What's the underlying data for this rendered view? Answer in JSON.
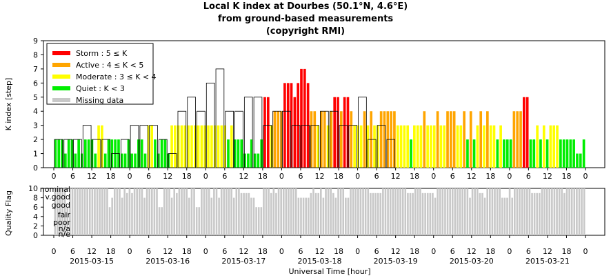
{
  "header": {
    "title_line1": "Local K index at Dourbes (50.1°N, 4.6°E)",
    "title_line2": "from ground-based measurements",
    "title_line3": "(copyright RMI)"
  },
  "colors": {
    "storm": "#ff0000",
    "active": "#ffa500",
    "moderate": "#ffff00",
    "quiet": "#00ee00",
    "missing": "#c8c8c8",
    "outline": "#000000"
  },
  "chart_data": [
    {
      "type": "bar",
      "title": "Local K index at Dourbes (50.1°N, 4.6°E) from ground-based measurements (copyright RMI)",
      "ylabel": "K index [step]",
      "ylim": [
        0,
        9
      ],
      "yticks": [
        "0",
        "1",
        "2",
        "3",
        "4",
        "5",
        "6",
        "7",
        "8",
        "9"
      ],
      "grid": false,
      "legend_position": "top-left",
      "legend": [
        {
          "key": "storm",
          "label": "Storm : 5 ≤ K"
        },
        {
          "key": "active",
          "label": "Active : 4 ≤ K < 5"
        },
        {
          "key": "moderate",
          "label": "Moderate : 3 ≤ K < 4"
        },
        {
          "key": "quiet",
          "label": "Quiet : K < 3"
        },
        {
          "key": "missing",
          "label": "Missing data"
        }
      ],
      "xtick_labels": [
        "0",
        "6",
        "12",
        "18",
        "0",
        "6",
        "12",
        "18",
        "0",
        "6",
        "12",
        "18",
        "0",
        "6",
        "12",
        "18",
        "0",
        "6",
        "12",
        "18",
        "0",
        "6",
        "12",
        "18",
        "0",
        "6",
        "12",
        "18",
        "0"
      ],
      "series": [
        {
          "name": "3-hour K index",
          "values": [
            2,
            2,
            2,
            3,
            2,
            2,
            1,
            2,
            3,
            3,
            3,
            2,
            1,
            4,
            5,
            4,
            6,
            7,
            4,
            4,
            5,
            5,
            3,
            4,
            4,
            3,
            3,
            3,
            4,
            4,
            3,
            3,
            5,
            2,
            3,
            2
          ],
          "values_per_day": [
            2,
            2,
            2,
            3,
            2,
            2,
            1,
            2,
            3,
            3,
            3,
            2,
            1,
            4,
            5,
            4,
            6,
            7,
            4,
            4,
            5,
            5,
            3,
            4,
            4,
            3,
            3,
            3,
            4,
            4,
            3,
            3,
            5,
            2,
            3,
            2
          ]
        },
        {
          "name": "Local K index (higher resolution)",
          "values": [
            2,
            2,
            2,
            1,
            2,
            2,
            1,
            2,
            1,
            2,
            2,
            2,
            1,
            3,
            3,
            1,
            2,
            2,
            2,
            2,
            1,
            1,
            2,
            1,
            1,
            2,
            2,
            1,
            3,
            3,
            2,
            1,
            2,
            2,
            1,
            3,
            3,
            3,
            3,
            3,
            3,
            3,
            3,
            3,
            3,
            3,
            3,
            3,
            3,
            3,
            3,
            3,
            2,
            3,
            2,
            2,
            2,
            1,
            1,
            2,
            1,
            1,
            2,
            5,
            5,
            3,
            4,
            4,
            4,
            6,
            6,
            6,
            5,
            6,
            7,
            7,
            6,
            4,
            4,
            3,
            4,
            4,
            3,
            4,
            5,
            5,
            4,
            5,
            5,
            4,
            3,
            3,
            3,
            4,
            3,
            4,
            3,
            3,
            4,
            4,
            4,
            4,
            4,
            3,
            3,
            3,
            3,
            2,
            3,
            3,
            3,
            4,
            3,
            3,
            3,
            4,
            3,
            3,
            4,
            4,
            4,
            3,
            3,
            4,
            2,
            4,
            2,
            3,
            4,
            3,
            4,
            3,
            3,
            2,
            3,
            2,
            2,
            2,
            4,
            4,
            4,
            5,
            5,
            2,
            2,
            3,
            2,
            3,
            2,
            3,
            3,
            3,
            2,
            2,
            2,
            2,
            2,
            1,
            1,
            2
          ]
        }
      ]
    },
    {
      "type": "bar",
      "ylabel": "Quality Flag",
      "xlabel": "Universal Time [hour]",
      "ylim": [
        0,
        10
      ],
      "yticks": [
        "0",
        "2",
        "4",
        "6",
        "8",
        "10"
      ],
      "category_labels": [
        "n/e",
        "n/a",
        "poor",
        "fair",
        "good",
        "v.good",
        "nominal"
      ],
      "xtick_labels": [
        "0",
        "6",
        "12",
        "18",
        "0",
        "6",
        "12",
        "18",
        "0",
        "6",
        "12",
        "18",
        "0",
        "6",
        "12",
        "18",
        "0",
        "6",
        "12",
        "18",
        "0",
        "6",
        "12",
        "18",
        "0",
        "6",
        "12",
        "18",
        "0"
      ],
      "date_labels": [
        "2015-03-15",
        "2015-03-16",
        "2015-03-17",
        "2015-03-18",
        "2015-03-19",
        "2015-03-20",
        "2015-03-21"
      ],
      "series": [
        {
          "name": "Quality",
          "values": [
            10,
            10,
            10,
            10,
            10,
            6,
            10,
            10,
            10,
            10,
            10,
            10,
            10,
            10,
            10,
            10,
            10,
            10,
            10,
            10,
            10,
            10,
            6,
            8,
            10,
            10,
            10,
            8,
            10,
            9,
            10,
            9,
            10,
            10,
            10,
            10,
            8,
            10,
            10,
            10,
            10,
            10,
            6,
            6,
            10,
            10,
            10,
            8,
            10,
            9,
            10,
            10,
            10,
            10,
            8,
            10,
            10,
            6,
            6,
            10,
            10,
            10,
            10,
            8,
            10,
            10,
            8,
            10,
            10,
            10,
            10,
            10,
            8,
            10,
            10,
            9,
            9,
            9,
            9,
            8,
            8,
            6,
            6,
            6,
            10,
            10,
            10,
            9,
            10,
            9,
            10,
            10,
            10,
            10,
            10,
            10,
            10,
            10,
            8,
            8,
            8,
            8,
            8,
            9,
            10,
            9,
            9,
            10,
            8,
            10,
            10,
            10,
            9,
            8,
            10,
            10,
            10,
            8,
            8,
            10,
            10,
            10,
            10,
            10,
            10,
            10,
            10,
            9,
            9,
            9,
            9,
            9,
            10,
            10,
            10,
            10,
            10,
            10,
            10,
            10,
            10,
            10,
            9,
            9,
            9,
            10,
            10,
            10,
            9,
            9,
            9,
            9,
            9,
            8,
            10,
            10,
            10,
            10,
            10,
            10,
            10,
            10,
            10,
            10,
            10,
            10,
            10,
            8,
            10,
            10,
            10,
            9,
            9,
            8,
            10,
            10,
            10,
            10,
            10,
            10,
            8,
            8,
            8,
            10,
            8,
            10,
            10,
            10,
            10,
            10,
            10,
            10,
            9,
            9,
            9,
            9,
            10,
            10,
            10,
            10,
            10,
            10,
            10,
            10,
            10,
            9,
            10,
            10,
            10,
            10,
            10,
            10,
            10,
            10
          ]
        }
      ]
    }
  ],
  "missing_after_note": ""
}
